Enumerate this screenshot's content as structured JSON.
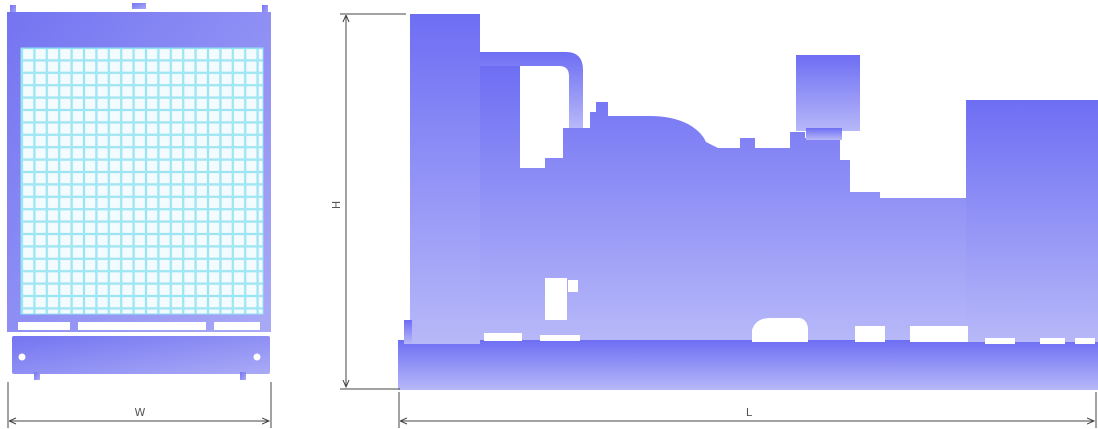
{
  "dimensions": {
    "width_label": "W",
    "height_label": "H",
    "length_label": "L"
  },
  "colors": {
    "body_gradient_top": "#6e6ef4",
    "body_gradient_bottom": "#b7b8f8",
    "grille_line": "#8fe3f0",
    "dimension_line": "#444444"
  }
}
